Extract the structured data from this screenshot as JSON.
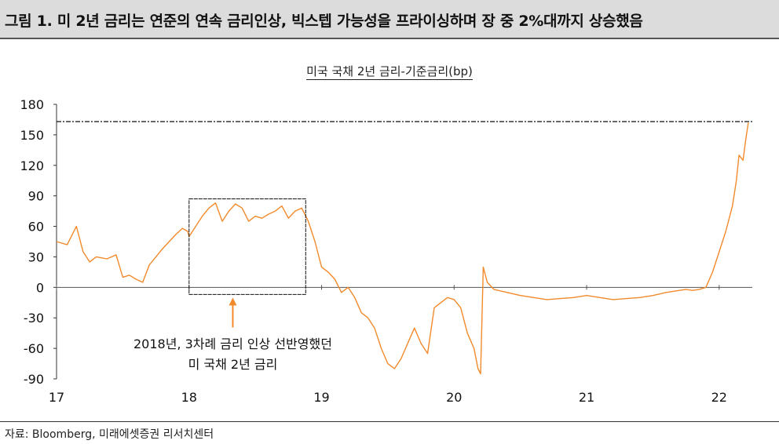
{
  "header": {
    "title": "그림 1. 미 2년 금리는 연준의 연속 금리인상, 빅스텝 가능성을 프라이싱하며 장 중 2%대까지 상승했음"
  },
  "source": "자료: Bloomberg, 미래에셋증권 리서치센터",
  "colors": {
    "line": "#f28a2b",
    "accent": "#f28a2b",
    "header_bg": "#dcdcdc"
  },
  "chart_data": {
    "type": "line",
    "title": "미국 국채 2년 금리-기준금리(bp)",
    "xlabel": "",
    "ylabel": "",
    "ylim": [
      -90,
      180
    ],
    "yticks": [
      "180",
      "150",
      "120",
      "90",
      "60",
      "30",
      "0",
      "-30",
      "-60",
      "-90"
    ],
    "xlim": [
      17,
      22.25
    ],
    "xticks": [
      "17",
      "18",
      "19",
      "20",
      "21",
      "22"
    ],
    "grid": false,
    "reference_line": {
      "y": 163,
      "style": "dashed"
    },
    "annotation": {
      "lines": [
        "2018년, 3차례 금리 인상 선반영했던",
        "미 국채 2년 금리"
      ],
      "box_x": [
        18.0,
        18.88
      ],
      "box_y": [
        -7,
        87
      ]
    },
    "series": [
      {
        "x": [
          17.0,
          17.08,
          17.15,
          17.2,
          17.25,
          17.3,
          17.38,
          17.45,
          17.5,
          17.55,
          17.6,
          17.65,
          17.7,
          17.75,
          17.8,
          17.85,
          17.9,
          17.95,
          17.99,
          18.0,
          18.05,
          18.1,
          18.15,
          18.2,
          18.25,
          18.3,
          18.35,
          18.4,
          18.45,
          18.5,
          18.55,
          18.6,
          18.65,
          18.7,
          18.75,
          18.8,
          18.85,
          18.9,
          18.95,
          19.0,
          19.05,
          19.1,
          19.15,
          19.2,
          19.25,
          19.3,
          19.35,
          19.4,
          19.45,
          19.5,
          19.55,
          19.6,
          19.65,
          19.7,
          19.75,
          19.8,
          19.85,
          19.9,
          19.95,
          20.0,
          20.05,
          20.1,
          20.15,
          20.18,
          20.2,
          20.22,
          20.25,
          20.3,
          20.4,
          20.5,
          20.6,
          20.7,
          20.8,
          20.9,
          21.0,
          21.1,
          21.2,
          21.3,
          21.4,
          21.5,
          21.6,
          21.7,
          21.75,
          21.8,
          21.85,
          21.9,
          21.95,
          22.0,
          22.05,
          22.1,
          22.13,
          22.15,
          22.18,
          22.2,
          22.22
        ],
        "y": [
          45,
          42,
          60,
          35,
          25,
          30,
          28,
          32,
          10,
          12,
          8,
          5,
          22,
          30,
          38,
          45,
          52,
          58,
          55,
          50,
          60,
          70,
          78,
          83,
          65,
          75,
          82,
          78,
          65,
          70,
          68,
          72,
          75,
          80,
          68,
          75,
          78,
          65,
          45,
          20,
          15,
          8,
          -5,
          0,
          -10,
          -25,
          -30,
          -40,
          -60,
          -75,
          -80,
          -70,
          -55,
          -40,
          -55,
          -65,
          -20,
          -15,
          -10,
          -12,
          -20,
          -45,
          -60,
          -80,
          -85,
          20,
          5,
          -2,
          -5,
          -8,
          -10,
          -12,
          -11,
          -10,
          -8,
          -10,
          -12,
          -11,
          -10,
          -8,
          -5,
          -3,
          -2,
          -3,
          -2,
          0,
          15,
          35,
          55,
          80,
          105,
          130,
          125,
          145,
          162
        ]
      }
    ]
  }
}
